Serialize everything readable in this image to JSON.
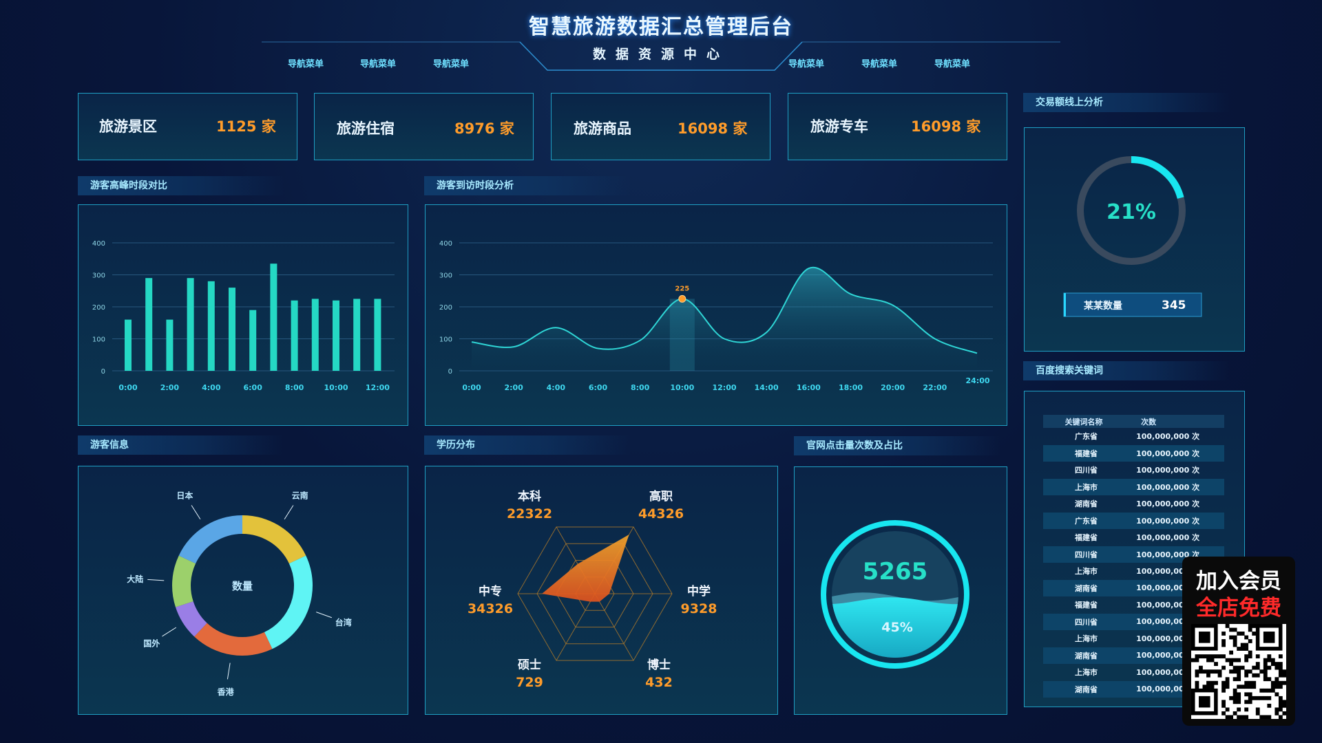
{
  "header": {
    "title": "智慧旅游数据汇总管理后台",
    "subtitle": "数据资源中心",
    "nav_left": [
      "导航菜单",
      "导航菜单",
      "导航菜单"
    ],
    "nav_right": [
      "导航菜单",
      "导航菜单",
      "导航菜单"
    ]
  },
  "stats": [
    {
      "label": "旅游景区",
      "value": "1125 家"
    },
    {
      "label": "旅游住宿",
      "value": "8976 家"
    },
    {
      "label": "旅游商品",
      "value": "16098 家"
    },
    {
      "label": "旅游专车",
      "value": "16098 家"
    }
  ],
  "sections": {
    "peak": "游客高峰时段对比",
    "visit": "游客到访时段分析",
    "info": "游客信息",
    "edu": "学历分布",
    "clicks": "官网点击量次数及占比",
    "trade": "交易额线上分析",
    "search": "百度搜索关键词"
  },
  "trade": {
    "percent_label": "21%",
    "fraction": 0.21,
    "qty_label": "某某数量",
    "qty_value": "345"
  },
  "clicks": {
    "count": "5265",
    "percent_label": "45%",
    "fraction": 0.45
  },
  "keywords": {
    "headers": [
      "关键词名称",
      "次数"
    ],
    "rows": [
      {
        "name": "广东省",
        "count": "100,000,000 次"
      },
      {
        "name": "福建省",
        "count": "100,000,000 次"
      },
      {
        "name": "四川省",
        "count": "100,000,000 次"
      },
      {
        "name": "上海市",
        "count": "100,000,000 次"
      },
      {
        "name": "湖南省",
        "count": "100,000,000 次"
      },
      {
        "name": "广东省",
        "count": "100,000,000 次"
      },
      {
        "name": "福建省",
        "count": "100,000,000 次"
      },
      {
        "name": "四川省",
        "count": "100,000,000 次"
      },
      {
        "name": "上海市",
        "count": "100,000,000"
      },
      {
        "name": "湖南省",
        "count": "100,000,000"
      },
      {
        "name": "福建省",
        "count": "100,000,000"
      },
      {
        "name": "四川省",
        "count": "100,000,000"
      },
      {
        "name": "上海市",
        "count": "100,000,000"
      },
      {
        "name": "湖南省",
        "count": "100,000,000"
      },
      {
        "name": "上海市",
        "count": "100,000,000"
      },
      {
        "name": "湖南省",
        "count": "100,000,000"
      }
    ]
  },
  "promo": {
    "line1": "加入会员",
    "line2": "全店免费"
  },
  "colors": {
    "accent": "#25d8c4",
    "orange": "#ff9c2a",
    "border": "#1f9fc4",
    "cyan": "#18e6f0"
  },
  "chart_data": [
    {
      "type": "bar",
      "title": "游客高峰时段对比",
      "categories": [
        "0:00",
        "1:00",
        "2:00",
        "3:00",
        "4:00",
        "5:00",
        "6:00",
        "7:00",
        "8:00",
        "9:00",
        "10:00",
        "11:00",
        "12:00"
      ],
      "x_tick_labels": [
        "0:00",
        "2:00",
        "4:00",
        "6:00",
        "8:00",
        "10:00",
        "12:00"
      ],
      "values": [
        160,
        290,
        160,
        290,
        280,
        260,
        190,
        335,
        220,
        225,
        220,
        225,
        225
      ],
      "ylim": [
        0,
        400
      ],
      "y_ticks": [
        0,
        100,
        200,
        300,
        400
      ],
      "grid": true
    },
    {
      "type": "area",
      "title": "游客到访时段分析",
      "x_tick_labels": [
        "0:00",
        "2:00",
        "4:00",
        "6:00",
        "8:00",
        "10:00",
        "12:00",
        "14:00",
        "16:00",
        "18:00",
        "20:00",
        "22:00",
        "24:00"
      ],
      "x": [
        0,
        2,
        4,
        6,
        8,
        10,
        12,
        14,
        16,
        18,
        20,
        22,
        24
      ],
      "values": [
        90,
        75,
        135,
        70,
        95,
        225,
        100,
        120,
        320,
        240,
        205,
        100,
        55
      ],
      "ylim": [
        0,
        400
      ],
      "y_ticks": [
        0,
        100,
        200,
        300,
        400
      ],
      "highlight": {
        "x": 10,
        "label": "225"
      },
      "grid": true
    },
    {
      "type": "pie",
      "title": "游客信息",
      "center_label": "数量",
      "labels": [
        "云南",
        "台湾",
        "香港",
        "国外",
        "大陆",
        "日本"
      ],
      "values": [
        18,
        25,
        19,
        8,
        12,
        18
      ],
      "colors": [
        "#e3c23b",
        "#5ff4f4",
        "#e36a3c",
        "#9a7ee6",
        "#9cd06b",
        "#5aa6e6"
      ]
    },
    {
      "type": "radar",
      "title": "学历分布",
      "indicators": [
        {
          "name": "高职",
          "value": "44326",
          "max": 50000
        },
        {
          "name": "中学",
          "value": "9328",
          "max": 50000
        },
        {
          "name": "博士",
          "value": "432",
          "max": 50000
        },
        {
          "name": "硕士",
          "value": "729",
          "max": 50000
        },
        {
          "name": "中专",
          "value": "34326",
          "max": 50000
        },
        {
          "name": "本科",
          "value": "22322",
          "max": 50000
        }
      ],
      "radar_values": [
        44326,
        9328,
        432,
        729,
        34326,
        22322
      ]
    }
  ]
}
